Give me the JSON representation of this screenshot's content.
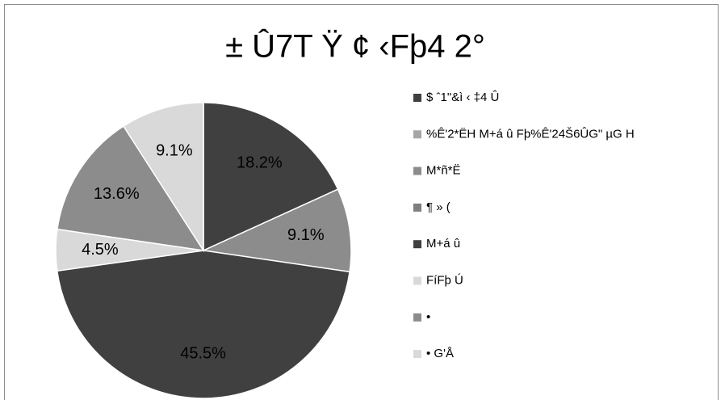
{
  "chart_data": {
    "type": "pie",
    "title": "± Û7T Ÿ ¢ ‹Fþ4 2°",
    "categories": [
      "$ ˆ1\"&ì ‹ ‡4  Û",
      "%Ê'2*ËH  M+á û  Fþ%Ê'24Š6ÛG\" µG H",
      "M*ñ*Ë",
      "¶ » (",
      "M+á û",
      "FíFþ Ú",
      "•",
      "• G'Å"
    ],
    "values": [
      18.2,
      0,
      9.1,
      0,
      45.5,
      4.5,
      13.6,
      9.1
    ],
    "value_labels": [
      "18.2%",
      null,
      "9.1%",
      null,
      "45.5%",
      "4.5%",
      "13.6%",
      "9.1%"
    ],
    "colors": [
      "#404040",
      "#a6a6a6",
      "#8c8c8c",
      "#7f7f7f",
      "#404040",
      "#d9d9d9",
      "#8c8c8c",
      "#d9d9d9"
    ],
    "legend": "right"
  }
}
